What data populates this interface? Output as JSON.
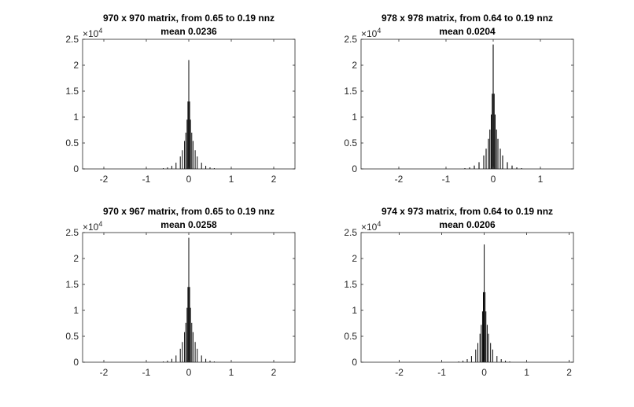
{
  "chart_data": [
    {
      "type": "bar",
      "title": "970 x 970 matrix, from 0.65 to 0.19 nnz",
      "subtitle": "mean 0.0236",
      "xlabel": "",
      "ylabel": "",
      "y_scale_label": "×10",
      "y_scale_exponent": "4",
      "xlim": [
        -2.5,
        2.5
      ],
      "ylim": [
        0,
        25000
      ],
      "xticks": [
        -2,
        -1,
        0,
        1,
        2
      ],
      "yticks": [
        0,
        5000,
        10000,
        15000,
        20000,
        25000
      ],
      "ytick_labels": [
        "0",
        "0.5",
        "1",
        "1.5",
        "2",
        "2.5"
      ],
      "grid": false,
      "bar_color": "#000000",
      "x": [
        -0.6,
        -0.5,
        -0.4,
        -0.3,
        -0.2,
        -0.15,
        -0.1,
        -0.07,
        -0.04,
        -0.02,
        0,
        0.02,
        0.04,
        0.07,
        0.1,
        0.15,
        0.2,
        0.3,
        0.4,
        0.5,
        0.6
      ],
      "values": [
        150,
        300,
        600,
        1200,
        2400,
        3600,
        5400,
        7000,
        9500,
        13000,
        21000,
        13000,
        9500,
        7000,
        5400,
        3600,
        2400,
        1200,
        600,
        300,
        150
      ]
    },
    {
      "type": "bar",
      "title": "978 x 978 matrix, from 0.64 to 0.19 nnz",
      "subtitle": "mean 0.0204",
      "xlabel": "",
      "ylabel": "",
      "y_scale_label": "×10",
      "y_scale_exponent": "4",
      "xlim": [
        -2.8,
        1.7
      ],
      "ylim": [
        0,
        25000
      ],
      "xticks": [
        -2,
        -1,
        0,
        1
      ],
      "yticks": [
        0,
        5000,
        10000,
        15000,
        20000,
        25000
      ],
      "ytick_labels": [
        "0",
        "0.5",
        "1",
        "1.5",
        "2",
        "2.5"
      ],
      "grid": false,
      "bar_color": "#000000",
      "x": [
        -0.6,
        -0.5,
        -0.4,
        -0.3,
        -0.2,
        -0.15,
        -0.1,
        -0.07,
        -0.04,
        -0.02,
        0,
        0.02,
        0.04,
        0.07,
        0.1,
        0.15,
        0.2,
        0.3,
        0.4,
        0.5,
        0.6
      ],
      "values": [
        150,
        300,
        650,
        1300,
        2600,
        3900,
        5800,
        7600,
        10500,
        14500,
        24000,
        14500,
        10500,
        7600,
        5800,
        3900,
        2600,
        1300,
        650,
        300,
        150
      ]
    },
    {
      "type": "bar",
      "title": "970 x 967 matrix, from 0.65 to 0.19 nnz",
      "subtitle": "mean 0.0258",
      "xlabel": "",
      "ylabel": "",
      "y_scale_label": "×10",
      "y_scale_exponent": "4",
      "xlim": [
        -2.5,
        2.5
      ],
      "ylim": [
        0,
        25000
      ],
      "xticks": [
        -2,
        -1,
        0,
        1,
        2
      ],
      "yticks": [
        0,
        5000,
        10000,
        15000,
        20000,
        25000
      ],
      "ytick_labels": [
        "0",
        "0.5",
        "1",
        "1.5",
        "2",
        "2.5"
      ],
      "grid": false,
      "bar_color": "#000000",
      "x": [
        -0.6,
        -0.5,
        -0.4,
        -0.3,
        -0.2,
        -0.15,
        -0.1,
        -0.07,
        -0.04,
        -0.02,
        0,
        0.02,
        0.04,
        0.07,
        0.1,
        0.15,
        0.2,
        0.3,
        0.4,
        0.5,
        0.6
      ],
      "values": [
        150,
        300,
        650,
        1300,
        2600,
        3900,
        5800,
        7600,
        10500,
        14500,
        24000,
        14500,
        10500,
        7600,
        5800,
        3900,
        2600,
        1300,
        650,
        300,
        150
      ]
    },
    {
      "type": "bar",
      "title": "974 x 973 matrix, from 0.64 to 0.19 nnz",
      "subtitle": "mean 0.0206",
      "xlabel": "",
      "ylabel": "",
      "y_scale_label": "×10",
      "y_scale_exponent": "4",
      "xlim": [
        -2.9,
        2.1
      ],
      "ylim": [
        0,
        25000
      ],
      "xticks": [
        -2,
        -1,
        0,
        1,
        2
      ],
      "yticks": [
        0,
        5000,
        10000,
        15000,
        20000,
        25000
      ],
      "ytick_labels": [
        "0",
        "0.5",
        "1",
        "1.5",
        "2",
        "2.5"
      ],
      "grid": false,
      "bar_color": "#000000",
      "x": [
        -0.6,
        -0.5,
        -0.4,
        -0.3,
        -0.2,
        -0.15,
        -0.1,
        -0.07,
        -0.04,
        -0.02,
        0,
        0.02,
        0.04,
        0.07,
        0.1,
        0.15,
        0.2,
        0.3,
        0.4,
        0.5,
        0.6
      ],
      "values": [
        150,
        300,
        600,
        1200,
        2450,
        3700,
        5500,
        7200,
        9800,
        13500,
        22700,
        13500,
        9800,
        7200,
        5500,
        3700,
        2450,
        1200,
        600,
        300,
        150
      ]
    }
  ]
}
